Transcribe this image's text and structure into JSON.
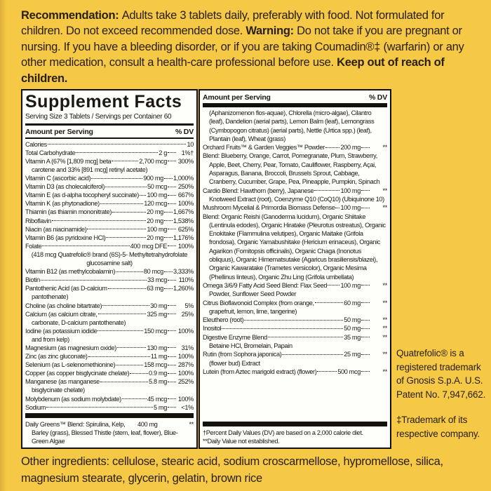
{
  "colors": {
    "background": "#F5C846",
    "ink_on_yellow": "#2A2014",
    "panel_background": "#FEFEFA",
    "panel_ink": "#1C1710",
    "bar_black": "#14100A"
  },
  "top_text": {
    "segments": [
      {
        "text": "Recommendation: ",
        "bold": true
      },
      {
        "text": "Adults take 3 tablets daily, preferably with food. Not formulated for children. Do not exceed recommended dose. ",
        "bold": false
      },
      {
        "text": "Warning: ",
        "bold": true
      },
      {
        "text": "Do not take if you are pregnant or nursing. If you have a bleeding disorder, or if you are taking Coumadin®‡ (warfarin) or any other medication, consult a health-care professional before use. ",
        "bold": false
      },
      {
        "text": "Keep out of reach of children.",
        "bold": true
      }
    ]
  },
  "facts": {
    "title": "Supplement Facts",
    "serving_line": "Serving Size 3 Tablets / Servings per Container 60",
    "amount_header": "Amount per Serving",
    "dv_header": "% DV",
    "left_rows": [
      {
        "name": "Calories",
        "amount": "10",
        "dv": ""
      },
      {
        "name": "Total Carbohydrate",
        "amount": "2 g",
        "dv": "1%†"
      },
      {
        "name": "Vitamin A (67% [1,809 mcg] beta",
        "amount": "2,700 mcg",
        "dv": "300%",
        "cont": "carotene and 33% [891 mcg] retinyl acetate)"
      },
      {
        "name": "Vitamin C (ascorbic acid)",
        "amount": "900 mg",
        "dv": "1,000%"
      },
      {
        "name": "Vitamin D3 (as cholecalciferol)",
        "amount": "50 mcg",
        "dv": "250%"
      },
      {
        "name": "Vitamin E (as d-alpha tocopheryl succinate)",
        "amount": "100 mg",
        "dv": "667%"
      },
      {
        "name": "Vitamin K (as phytonadione)",
        "amount": "120 mcg",
        "dv": "100%"
      },
      {
        "name": "Thiamin (as thiamin mononitrate)",
        "amount": "20 mg",
        "dv": "1,667%"
      },
      {
        "name": "Riboflavin",
        "amount": "20 mg",
        "dv": "1,538%"
      },
      {
        "name": "Niacin (as niacinamide)",
        "amount": "100 mg",
        "dv": "625%"
      },
      {
        "name": "Vitamin B6 (as pyridoxine HCl)",
        "amount": "20 mg",
        "dv": "1,176%"
      },
      {
        "name": "Folate",
        "amount": "400 mcg DFE",
        "dv": "100%",
        "cont": "(418 mcg Quatrefolic® brand (6S)-5- Methyltetrahydrofolate glucosamine salt)",
        "center": true
      },
      {
        "name": "Vitamin B12 (as methylcobalamin)",
        "amount": "80 mcg",
        "dv": "3,333%"
      },
      {
        "name": "Biotin",
        "amount": "33 mcg",
        "dv": "110%"
      },
      {
        "name": "Pantothenic Acid (as D-calcium",
        "amount": "63 mg",
        "dv": "1,260%",
        "cont": "pantothenate)"
      },
      {
        "name": "Choline (as choline bitartrate)",
        "amount": "30 mg",
        "dv": "5%"
      },
      {
        "name": "Calcium (as calcium citrate,",
        "amount": "325 mg",
        "dv": "25%",
        "cont": "carbonate, D-calcium pantothenate)"
      },
      {
        "name": "Iodine (as potassium iodide",
        "amount": "150 mcg",
        "dv": "100%",
        "cont": "and from kelp)"
      },
      {
        "name": "Magnesium (as magnesium oxide)",
        "amount": "130 mg",
        "dv": "31%"
      },
      {
        "name": "Zinc (as zinc gluconate)",
        "amount": "11 mg",
        "dv": "100%"
      },
      {
        "name": "Selenium (as L-selenomethionine)",
        "amount": "158 mcg",
        "dv": "287%"
      },
      {
        "name": "Copper (as copper bisglycinate chelate)",
        "amount": "0.9 mg",
        "dv": "100%"
      },
      {
        "name": "Manganese (as manganese",
        "amount": "5.8 mg",
        "dv": "252%",
        "cont": "bisglycinate chelate)"
      },
      {
        "name": "Molybdenum (as sodium molybdate)",
        "amount": "45 mcg",
        "dv": "100%"
      },
      {
        "name": "Sodium",
        "amount": "5 mg",
        "dv": "<1%"
      }
    ],
    "daily_greens": {
      "name": "Daily Greens™ Blend: Spirulina, Kelp,",
      "amount": "400 mg",
      "dv": "**",
      "cont": "Barley (grass), Blessed Thistle (stem, leaf, flower), Blue-Green Algae"
    },
    "right_intro": "(Aphanizomenon flos-aquae), Chlorella (micro-algae), Cilantro (leaf), Dandelion (aerial parts), Lemon Balm (leaf), Lemongrass (Cymbopogon citratus) (aerial parts), Nettle (Urtica spp.) (leaf), Plantain (leaf), Wheat (grass)",
    "right_rows": [
      {
        "name": "Orchard Fruits™ & Garden Veggies™ Powder",
        "amount": "200 mg",
        "dv": "**",
        "hang": true,
        "cont": "Blend: Blueberry, Orange, Carrot, Pomegranate, Plum, Strawberry, Apple, Beet, Cherry, Pear, Tomato, Cauliflower, Raspberry, Açai, Asparagus, Banana, Broccoli, Brussels Sprout, Cabbage, Cranberry, Cucumber, Grape, Pea, Pineapple, Pumpkin, Spinach"
      },
      {
        "name": "Cardio Blend: Hawthorn (berry), Japanese",
        "amount": "100 mg",
        "dv": "**",
        "cont": "Knotweed Extract (root), Coenzyme Q10 (CoQ10) (Ubiquinone 10)"
      },
      {
        "name": "Mushroom Mycelial & Primordia Biomass Defense",
        "amount": "100 mg",
        "dv": "**",
        "hang": true,
        "cont": "Blend: Organic Reishi (Ganoderma lucidum), Organic Shiitake (Lentinula edodes), Organic Hiratake (Pleurotus ostreatus), Organic Enokitake (Flammulina velutipes), Organic Maitake (Grifola frondosa), Organic Yamabushitake (Hericium erinaceus), Organic Agarikon (Fomitopsis officinalis), Organic Chaga (Inonotus obliquus), Organic Himematsutake (Agaricus brasiliensis/blazei), Organic Kawaratake (Trametes versicolor), Organic Mesima (Phellinus linteus), Organic Zhu Ling (Grifola umbellata)"
      },
      {
        "name": "Omega 3/6/9 Fatty Acid Seed Blend: Flax Seed",
        "amount": "100 mg",
        "dv": "**",
        "cont": "Powder, Sunflower Seed Powder"
      },
      {
        "name": "Citrus Bioflavonoid Complex (from orange,",
        "amount": "60 mg",
        "dv": "**",
        "cont": "grapefruit, lemon, lime, tangerine)"
      },
      {
        "name": "Eleuthero (root)",
        "amount": "50 mg",
        "dv": "**"
      },
      {
        "name": "Inositol",
        "amount": "50 mg",
        "dv": "**"
      },
      {
        "name": "Digestive Enzyme Blend",
        "amount": "35 mg",
        "dv": "**",
        "cont": "Betaine HCl, Bromelain, Papain"
      },
      {
        "name": "Rutin (from Sophora japonica)",
        "amount": "25 mg",
        "dv": "**",
        "cont": "(flower bud) Extract"
      },
      {
        "name": "Lutein (from Aztec marigold extract) (flower)",
        "amount": "500 mcg",
        "dv": "**"
      }
    ],
    "footnotes": [
      "†Percent Daily Values (DV) are based on a 2,000 calorie diet.",
      "**Daily Value not established."
    ]
  },
  "side_notes": [
    "Quatrefolic® is a registered trademark of Gnosis S.p.A. U.S. Patent No. 7,947,662.",
    "‡Trademark of its respective company."
  ],
  "other_ingredients": "Other ingredients: cellulose, stearic acid, sodium croscarmellose, hypromellose, silica, magnesium stearate, glycerin, gelatin, brown rice"
}
